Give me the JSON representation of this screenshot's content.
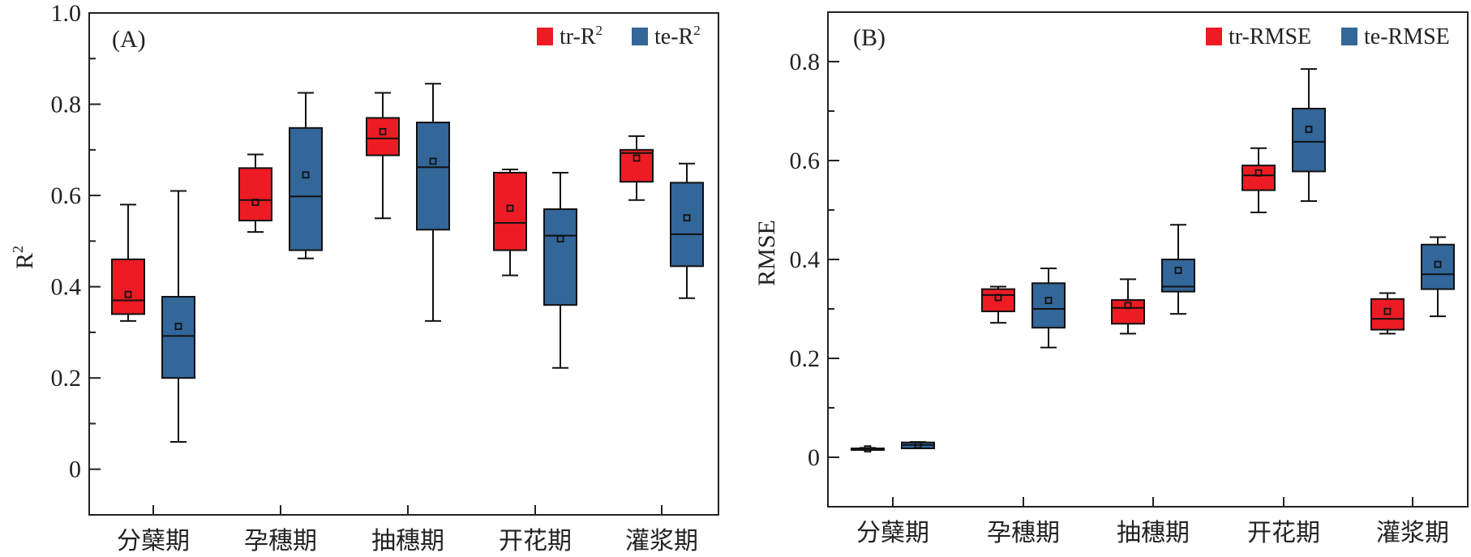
{
  "colors": {
    "train": "#ED1C24",
    "test": "#336699",
    "stroke": "#111111"
  },
  "chart_data": [
    {
      "type": "box",
      "panel_label": "(A)",
      "ylabel": "R",
      "ylabel_sup": "2",
      "ylim": [
        -0.1,
        1.0
      ],
      "yticks": [
        0,
        0.2,
        0.4,
        0.6,
        0.8,
        1.0
      ],
      "ytick_labels": [
        "0",
        "0.2",
        "0.4",
        "0.6",
        "0.8",
        "1.0"
      ],
      "minor_yticks": [
        0.1,
        0.3,
        0.5,
        0.7,
        0.9
      ],
      "categories": [
        "分蘖期",
        "孕穗期",
        "抽穗期",
        "开花期",
        "灌浆期"
      ],
      "legend_position": "top-right",
      "series": [
        {
          "name": "tr-R",
          "name_sup": "2",
          "color_key": "train",
          "boxes": [
            {
              "min": 0.325,
              "q1": 0.34,
              "median": 0.37,
              "q3": 0.46,
              "max": 0.58,
              "mean": 0.383
            },
            {
              "min": 0.52,
              "q1": 0.545,
              "median": 0.59,
              "q3": 0.66,
              "max": 0.69,
              "mean": 0.585
            },
            {
              "min": 0.55,
              "q1": 0.688,
              "median": 0.725,
              "q3": 0.77,
              "max": 0.825,
              "mean": 0.74
            },
            {
              "min": 0.425,
              "q1": 0.48,
              "median": 0.54,
              "q3": 0.65,
              "max": 0.657,
              "mean": 0.572
            },
            {
              "min": 0.59,
              "q1": 0.63,
              "median": 0.693,
              "q3": 0.7,
              "max": 0.73,
              "mean": 0.682
            }
          ]
        },
        {
          "name": "te-R",
          "name_sup": "2",
          "color_key": "test",
          "boxes": [
            {
              "min": 0.06,
              "q1": 0.2,
              "median": 0.292,
              "q3": 0.378,
              "max": 0.61,
              "mean": 0.313
            },
            {
              "min": 0.462,
              "q1": 0.48,
              "median": 0.598,
              "q3": 0.748,
              "max": 0.825,
              "mean": 0.645
            },
            {
              "min": 0.325,
              "q1": 0.525,
              "median": 0.662,
              "q3": 0.76,
              "max": 0.845,
              "mean": 0.675
            },
            {
              "min": 0.222,
              "q1": 0.36,
              "median": 0.512,
              "q3": 0.57,
              "max": 0.65,
              "mean": 0.505
            },
            {
              "min": 0.375,
              "q1": 0.445,
              "median": 0.515,
              "q3": 0.628,
              "max": 0.67,
              "mean": 0.551
            }
          ]
        }
      ]
    },
    {
      "type": "box",
      "panel_label": "(B)",
      "ylabel": "RMSE",
      "ylabel_sup": "",
      "ylim": [
        -0.1,
        0.9
      ],
      "yticks": [
        0,
        0.2,
        0.4,
        0.6,
        0.8
      ],
      "ytick_labels": [
        "0",
        "0.2",
        "0.4",
        "0.6",
        "0.8"
      ],
      "minor_yticks": [
        0.1,
        0.3,
        0.5,
        0.7
      ],
      "categories": [
        "分蘖期",
        "孕穗期",
        "抽穗期",
        "开花期",
        "灌浆期"
      ],
      "legend_position": "top-right",
      "series": [
        {
          "name": "tr-RMSE",
          "name_sup": "",
          "color_key": "train",
          "boxes": [
            {
              "min": 0.016,
              "q1": 0.016,
              "median": 0.017,
              "q3": 0.018,
              "max": 0.019,
              "mean": 0.017
            },
            {
              "min": 0.272,
              "q1": 0.295,
              "median": 0.328,
              "q3": 0.34,
              "max": 0.345,
              "mean": 0.323
            },
            {
              "min": 0.25,
              "q1": 0.27,
              "median": 0.302,
              "q3": 0.318,
              "max": 0.36,
              "mean": 0.307
            },
            {
              "min": 0.495,
              "q1": 0.54,
              "median": 0.57,
              "q3": 0.59,
              "max": 0.625,
              "mean": 0.575
            },
            {
              "min": 0.25,
              "q1": 0.258,
              "median": 0.28,
              "q3": 0.32,
              "max": 0.332,
              "mean": 0.295
            }
          ]
        },
        {
          "name": "te-RMSE",
          "name_sup": "",
          "color_key": "test",
          "boxes": [
            {
              "min": 0.018,
              "q1": 0.018,
              "median": 0.025,
              "q3": 0.03,
              "max": 0.031,
              "mean": 0.025
            },
            {
              "min": 0.222,
              "q1": 0.262,
              "median": 0.3,
              "q3": 0.352,
              "max": 0.382,
              "mean": 0.317
            },
            {
              "min": 0.29,
              "q1": 0.335,
              "median": 0.345,
              "q3": 0.4,
              "max": 0.47,
              "mean": 0.378
            },
            {
              "min": 0.518,
              "q1": 0.578,
              "median": 0.638,
              "q3": 0.705,
              "max": 0.785,
              "mean": 0.663
            },
            {
              "min": 0.285,
              "q1": 0.34,
              "median": 0.37,
              "q3": 0.43,
              "max": 0.445,
              "mean": 0.39
            }
          ]
        }
      ]
    }
  ]
}
